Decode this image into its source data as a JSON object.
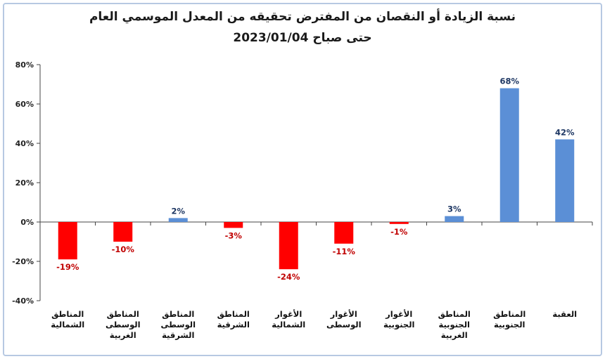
{
  "chart_data": {
    "type": "bar",
    "title_line1": "نسبة الزيادة أو النقصان من المفترض تحقيقه من المعدل الموسمي العام",
    "title_line2": "حتى صباح 2023/01/04",
    "categories": [
      [
        "المناطق",
        "الشمالية"
      ],
      [
        "المناطق",
        "الوسطى",
        "الغربية"
      ],
      [
        "المناطق",
        "الوسطى",
        "الشرقية"
      ],
      [
        "المناطق",
        "الشرقية"
      ],
      [
        "الأغوار",
        "الشمالية"
      ],
      [
        "الأغوار",
        "الوسطى"
      ],
      [
        "الأغوار",
        "الجنوبية"
      ],
      [
        "المناطق",
        "الجنوبية",
        "الغربية"
      ],
      [
        "المناطق",
        "الجنوبية"
      ],
      [
        "العقبة"
      ]
    ],
    "values": [
      -19,
      -10,
      2,
      -3,
      -24,
      -11,
      -1,
      3,
      68,
      42
    ],
    "data_labels": [
      "-19%",
      "-10%",
      "2%",
      "-3%",
      "-24%",
      "-11%",
      "-1%",
      "3%",
      "68%",
      "42%"
    ],
    "ylim": [
      -40,
      80
    ],
    "yticks": [
      80,
      60,
      40,
      20,
      0,
      -20,
      -40
    ],
    "ytick_labels": [
      "80%",
      "60%",
      "40%",
      "20%",
      "0%",
      "-20%",
      "-40%"
    ],
    "grid": false,
    "colors": {
      "positive_bar": "#5b8fd6",
      "negative_bar": "#ff0000",
      "positive_label": "#1f3864",
      "negative_label": "#c00000",
      "axis": "#444444"
    }
  }
}
